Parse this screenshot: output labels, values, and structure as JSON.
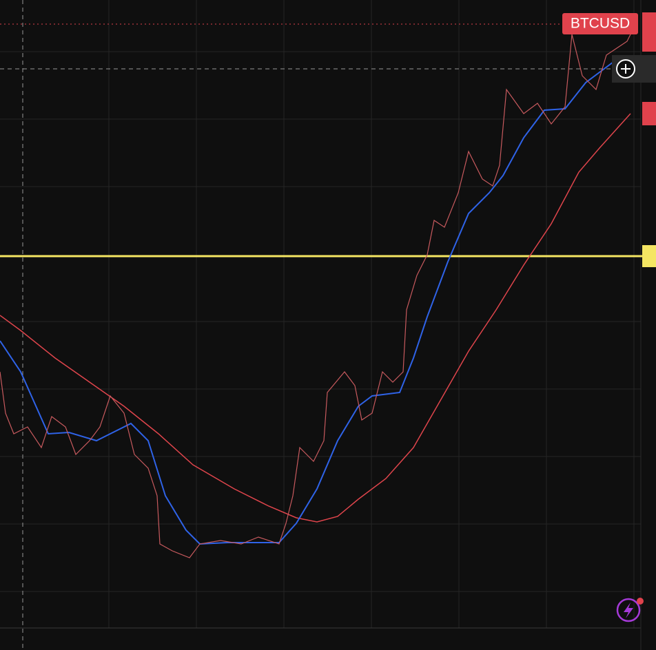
{
  "symbol_label": "BTCUSD"
}
